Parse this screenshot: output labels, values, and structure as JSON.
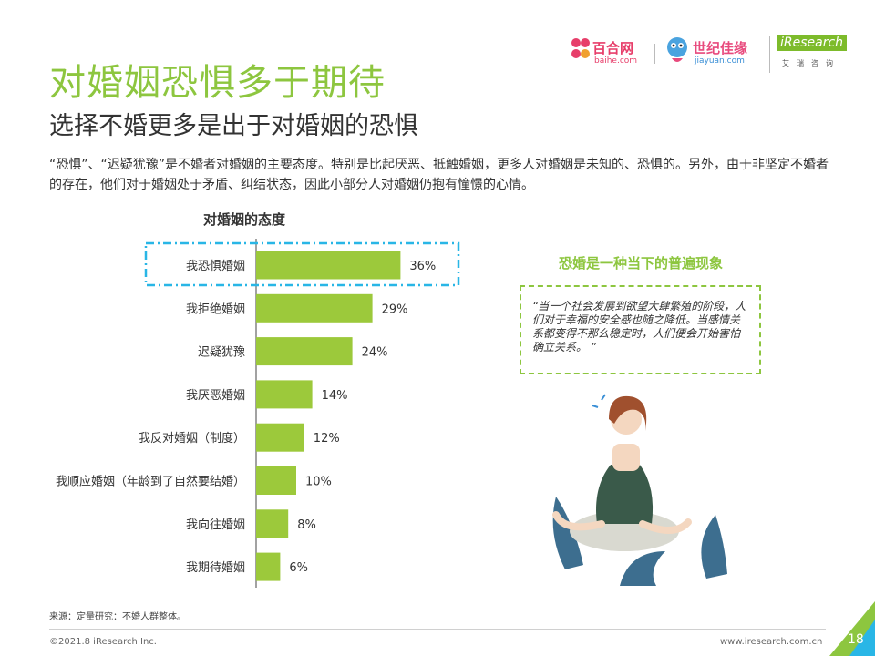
{
  "header": {
    "title": "对婚姻恐惧多于期待",
    "subtitle": "选择不婚更多是出于对婚姻的恐惧",
    "intro": "“恐惧”、“迟疑犹豫”是不婚者对婚姻的主要态度。特别是比起厌恶、抵触婚姻，更多人对婚姻是未知的、恐惧的。另外，由于非坚定不婚者的存在，他们对于婚姻处于矛盾、纠结状态，因此小部分人对婚姻仍抱有憧憬的心情。"
  },
  "logos": {
    "baihe_cn": "百合网",
    "baihe_en": "baihe.com",
    "jiayuan_cn": "世纪佳缘",
    "jiayuan_en": "jiayuan.com",
    "iresearch_en": "iResearch",
    "iresearch_cn": "艾瑞咨询"
  },
  "chart_data": {
    "type": "bar",
    "orientation": "horizontal",
    "title": "对婚姻的态度",
    "categories": [
      "我恐惧婚姻",
      "我拒绝婚姻",
      "迟疑犹豫",
      "我厌恶婚姻",
      "我反对婚姻（制度）",
      "我顺应婚姻（年龄到了自然要结婚）",
      "我向往婚姻",
      "我期待婚姻"
    ],
    "values": [
      36,
      29,
      24,
      14,
      12,
      10,
      8,
      6
    ],
    "value_labels": [
      "36%",
      "29%",
      "24%",
      "14%",
      "12%",
      "10%",
      "8%",
      "6%"
    ],
    "unit": "%",
    "bar_color": "#9cc93b",
    "highlight_index": 0,
    "highlight_color": "#29b6e6",
    "grid": false,
    "legend": "none"
  },
  "side": {
    "title": "恐婚是一种当下的普遍现象",
    "quote": "“当一个社会发展到欲望大肆繁殖的阶段，人们对于幸福的安全感也随之降低。当感情关系都变得不那么稳定时，人们便会开始害怕确立关系。 ”"
  },
  "footer": {
    "source": "来源：定量研究：不婚人群整体。",
    "copyright": "©2021.8 iResearch Inc.",
    "website": "www.iresearch.com.cn",
    "page": "18"
  },
  "colors": {
    "accent_green": "#8dc63f",
    "text_dark": "#333333"
  }
}
